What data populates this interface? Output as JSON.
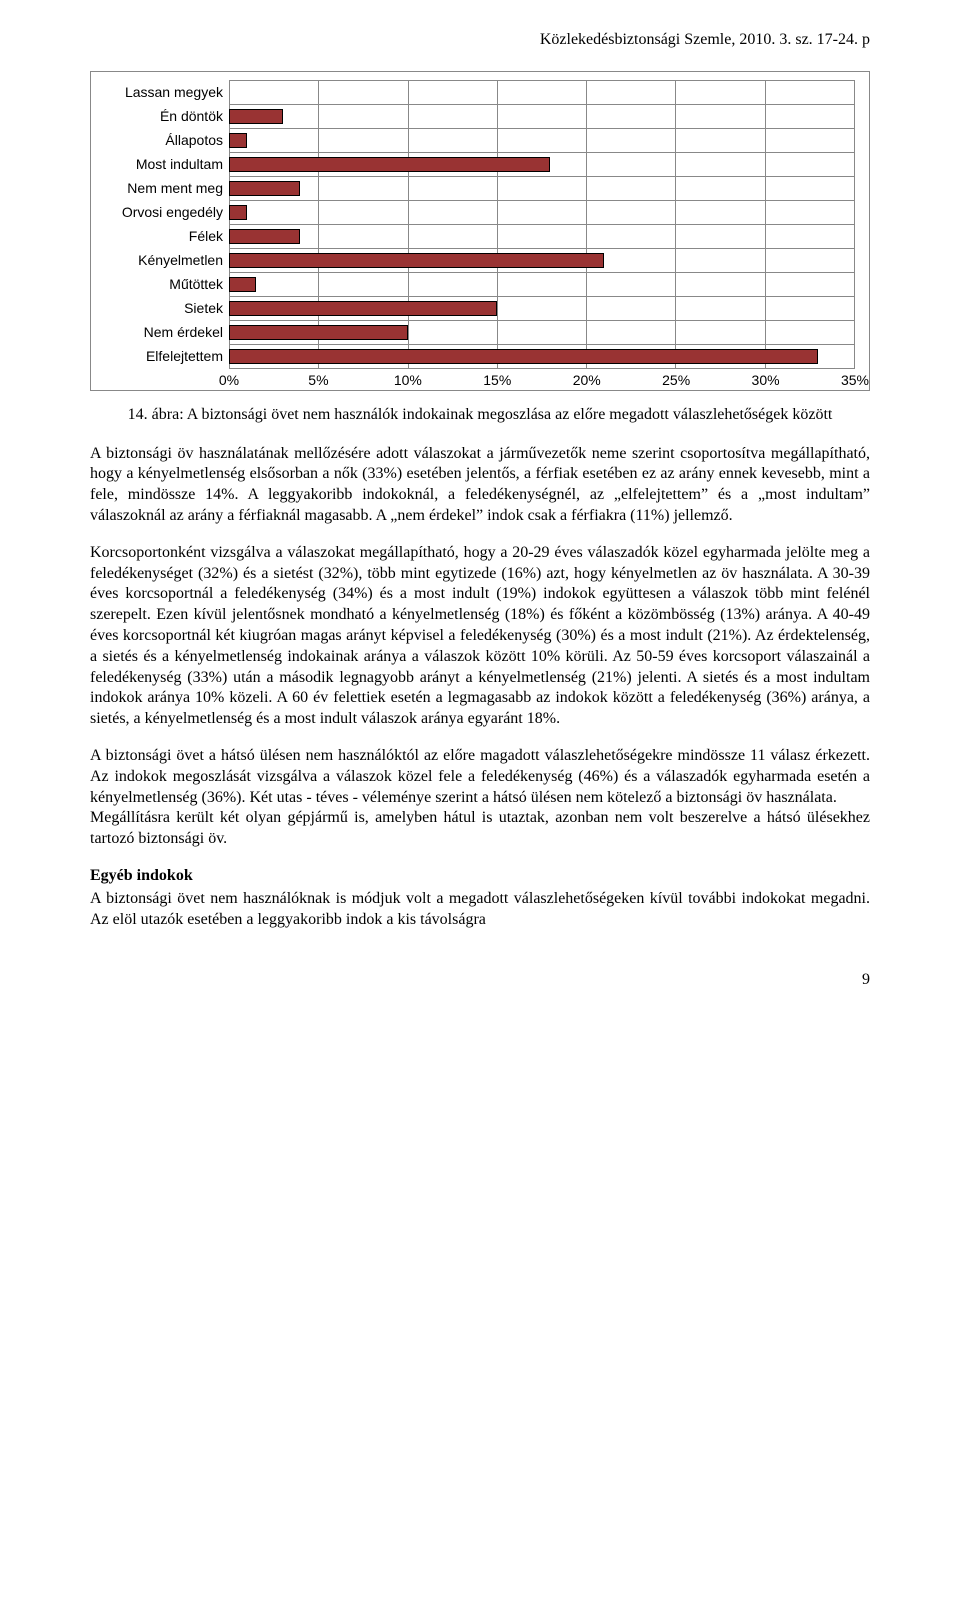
{
  "header": "Közlekedésbiztonsági Szemle, 2010. 3. sz. 17-24. p",
  "chart": {
    "type": "bar-horizontal",
    "x_max": 35,
    "x_tick_step": 5,
    "x_ticks": [
      "0%",
      "5%",
      "10%",
      "15%",
      "20%",
      "25%",
      "30%",
      "35%"
    ],
    "bar_color": "#993333",
    "bar_border": "#000000",
    "grid_color": "#888888",
    "background_color": "#ffffff",
    "label_font": "Arial",
    "label_fontsize": 14,
    "categories": [
      {
        "label": "Lassan megyek",
        "value": 0
      },
      {
        "label": "Én döntök",
        "value": 3
      },
      {
        "label": "Állapotos",
        "value": 1
      },
      {
        "label": "Most indultam",
        "value": 18
      },
      {
        "label": "Nem ment meg",
        "value": 4
      },
      {
        "label": "Orvosi engedély",
        "value": 1
      },
      {
        "label": "Félek",
        "value": 4
      },
      {
        "label": "Kényelmetlen",
        "value": 21
      },
      {
        "label": "Műtöttek",
        "value": 1.5
      },
      {
        "label": "Sietek",
        "value": 15
      },
      {
        "label": "Nem érdekel",
        "value": 10
      },
      {
        "label": "Elfelejtettem",
        "value": 33
      }
    ]
  },
  "caption": "14. ábra: A biztonsági övet nem használók indokainak megoszlása az előre megadott válaszlehetőségek között",
  "paragraphs": {
    "p1": "A biztonsági öv használatának mellőzésére adott válaszokat a járművezetők neme szerint csoportosítva megállapítható, hogy a kényelmetlenség elsősorban a nők (33%) esetében jelentős, a férfiak esetében ez az arány ennek kevesebb, mint a fele, mindössze 14%. A leggyakoribb indokoknál, a feledékenységnél, az „elfelejtettem” és a „most indultam” válaszoknál az arány a férfiaknál magasabb. A „nem érdekel” indok csak a férfiakra (11%) jellemző.",
    "p2": "Korcsoportonként vizsgálva a válaszokat megállapítható, hogy a 20-29 éves válaszadók közel egyharmada jelölte meg a feledékenységet (32%) és a sietést (32%), több mint egytizede (16%) azt, hogy kényelmetlen az öv használata. A 30-39 éves korcsoportnál a feledékenység (34%) és a most indult (19%) indokok együttesen a válaszok több mint felénél szerepelt. Ezen kívül jelentősnek mondható a kényelmetlenség (18%) és főként a közömbösség (13%) aránya. A 40-49 éves korcsoportnál két kiugróan magas arányt képvisel a feledékenység (30%) és a most indult (21%). Az érdektelenség, a sietés és a kényelmetlenség indokainak aránya a válaszok között 10% körüli. Az 50-59 éves korcsoport válaszainál a feledékenység (33%) után a második legnagyobb arányt a kényelmetlenség (21%) jelenti. A sietés és a most indultam indokok aránya 10% közeli. A 60 év felettiek esetén a legmagasabb az indokok között a feledékenység (36%) aránya, a sietés, a kényelmetlenség és a most indult válaszok aránya egyaránt 18%.",
    "p3": "A biztonsági övet a hátsó ülésen nem használóktól az előre magadott válaszlehetőségekre mindössze 11 válasz érkezett. Az indokok megoszlását vizsgálva a válaszok közel fele a feledékenység (46%) és a válaszadók egyharmada esetén a kényelmetlenség (36%). Két utas - téves - véleménye szerint a hátsó ülésen nem kötelező a biztonsági öv használata.",
    "p4": "Megállításra került két olyan gépjármű is, amelyben hátul is utaztak, azonban nem volt beszerelve a hátsó ülésekhez tartozó biztonsági öv.",
    "section_head": "Egyéb indokok",
    "p5": "A biztonsági övet nem használóknak is módjuk volt a megadott válaszlehetőségeken kívül további indokokat megadni. Az elöl utazók esetében a leggyakoribb indok a kis távolságra"
  },
  "page_number": "9"
}
